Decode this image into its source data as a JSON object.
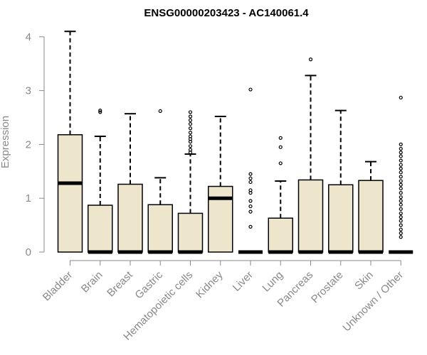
{
  "chart_data": {
    "type": "box",
    "title": "ENSG00000203423 - AC140061.4",
    "ylabel": "Expression",
    "ylim": [
      0,
      4.15
    ],
    "yticks": [
      0,
      1,
      2,
      3,
      4
    ],
    "categories": [
      "Bladder",
      "Brain",
      "Breast",
      "Gastric",
      "Hematopoietic cells",
      "Kidney",
      "Liver",
      "Lung",
      "Pancreas",
      "Prostate",
      "Skin",
      "Unknown / Other"
    ],
    "colors": {
      "box_fill": "#ede6cc",
      "stroke": "#000000",
      "axis": "#888888"
    },
    "boxes": [
      {
        "q1": 0,
        "median": 1.28,
        "q3": 2.18,
        "whisker_low": 0,
        "whisker_high": 4.1,
        "outliers": []
      },
      {
        "q1": 0,
        "median": 0,
        "q3": 0.87,
        "whisker_low": 0,
        "whisker_high": 2.15,
        "outliers": [
          2.6,
          2.63
        ]
      },
      {
        "q1": 0,
        "median": 0,
        "q3": 1.26,
        "whisker_low": 0,
        "whisker_high": 2.57,
        "outliers": []
      },
      {
        "q1": 0,
        "median": 0,
        "q3": 0.88,
        "whisker_low": 0,
        "whisker_high": 1.38,
        "outliers": [
          2.62
        ]
      },
      {
        "q1": 0,
        "median": 0,
        "q3": 0.72,
        "whisker_low": 0,
        "whisker_high": 1.82,
        "outliers": [
          1.85,
          1.9,
          1.97,
          2.05,
          2.1,
          2.15,
          2.22,
          2.3,
          2.38,
          2.45,
          2.52,
          2.6
        ]
      },
      {
        "q1": 0,
        "median": 1.0,
        "q3": 1.22,
        "whisker_low": 0,
        "whisker_high": 2.52,
        "outliers": []
      },
      {
        "q1": 0,
        "median": 0,
        "q3": 0,
        "whisker_low": 0,
        "whisker_high": 0,
        "outliers": [
          0.47,
          0.75,
          0.85,
          0.95,
          1.1,
          1.15,
          1.3,
          1.37,
          1.45,
          3.02
        ]
      },
      {
        "q1": 0,
        "median": 0,
        "q3": 0.63,
        "whisker_low": 0,
        "whisker_high": 1.32,
        "outliers": [
          1.65,
          1.95,
          2.12
        ]
      },
      {
        "q1": 0,
        "median": 0,
        "q3": 1.34,
        "whisker_low": 0,
        "whisker_high": 3.28,
        "outliers": [
          3.58
        ]
      },
      {
        "q1": 0,
        "median": 0,
        "q3": 1.25,
        "whisker_low": 0,
        "whisker_high": 2.63,
        "outliers": []
      },
      {
        "q1": 0,
        "median": 0,
        "q3": 1.33,
        "whisker_low": 0,
        "whisker_high": 1.68,
        "outliers": []
      },
      {
        "q1": 0,
        "median": 0,
        "q3": 0,
        "whisker_low": 0,
        "whisker_high": 0,
        "outliers": [
          0.28,
          0.35,
          0.42,
          0.5,
          0.58,
          0.65,
          0.72,
          0.8,
          0.88,
          0.95,
          1.02,
          1.1,
          1.18,
          1.25,
          1.32,
          1.4,
          1.48,
          1.55,
          1.62,
          1.7,
          1.78,
          1.85,
          1.92,
          2.0,
          2.87
        ]
      }
    ]
  }
}
